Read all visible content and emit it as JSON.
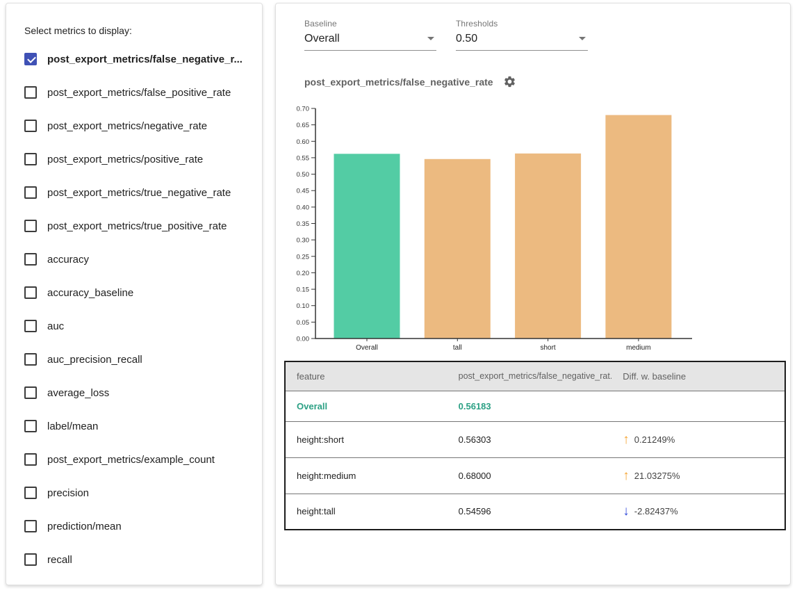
{
  "sidebar": {
    "title": "Select metrics to display:",
    "metrics": [
      {
        "label": "post_export_metrics/false_negative_r...",
        "checked": true
      },
      {
        "label": "post_export_metrics/false_positive_rate",
        "checked": false
      },
      {
        "label": "post_export_metrics/negative_rate",
        "checked": false
      },
      {
        "label": "post_export_metrics/positive_rate",
        "checked": false
      },
      {
        "label": "post_export_metrics/true_negative_rate",
        "checked": false
      },
      {
        "label": "post_export_metrics/true_positive_rate",
        "checked": false
      },
      {
        "label": "accuracy",
        "checked": false
      },
      {
        "label": "accuracy_baseline",
        "checked": false
      },
      {
        "label": "auc",
        "checked": false
      },
      {
        "label": "auc_precision_recall",
        "checked": false
      },
      {
        "label": "average_loss",
        "checked": false
      },
      {
        "label": "label/mean",
        "checked": false
      },
      {
        "label": "post_export_metrics/example_count",
        "checked": false
      },
      {
        "label": "precision",
        "checked": false
      },
      {
        "label": "prediction/mean",
        "checked": false
      },
      {
        "label": "recall",
        "checked": false
      }
    ]
  },
  "controls": {
    "baseline": {
      "label": "Baseline",
      "value": "Overall"
    },
    "thresholds": {
      "label": "Thresholds",
      "value": "0.50"
    }
  },
  "chart_header": {
    "title": "post_export_metrics/false_negative_rate"
  },
  "chart_data": {
    "type": "bar",
    "title": "post_export_metrics/false_negative_rate",
    "categories": [
      "Overall",
      "tall",
      "short",
      "medium"
    ],
    "values": [
      0.56183,
      0.54596,
      0.56303,
      0.68
    ],
    "bar_colors": [
      "#53CCA4",
      "#ECBA80",
      "#ECBA80",
      "#ECBA80"
    ],
    "xlabel": "",
    "ylabel": "",
    "ylim": [
      0,
      0.7
    ],
    "ytick_step": 0.05,
    "grid": false,
    "legend": "none"
  },
  "table": {
    "columns": [
      "feature",
      "post_export_metrics/false_negative_rat...",
      "Diff. w. baseline"
    ],
    "rows": [
      {
        "feature": "Overall",
        "value": "0.56183",
        "diff": "",
        "direction": "none",
        "is_baseline": true
      },
      {
        "feature": "height:short",
        "value": "0.56303",
        "diff": "0.21249%",
        "direction": "up",
        "is_baseline": false
      },
      {
        "feature": "height:medium",
        "value": "0.68000",
        "diff": "21.03275%",
        "direction": "up",
        "is_baseline": false
      },
      {
        "feature": "height:tall",
        "value": "0.54596",
        "diff": "-2.82437%",
        "direction": "down",
        "is_baseline": false
      }
    ]
  },
  "colors": {
    "checkbox_checked": "#3F51B5",
    "bar_baseline": "#53CCA4",
    "bar_slice": "#ECBA80",
    "baseline_row_text": "#2BA084",
    "arrow_up": "#F5A431",
    "arrow_down": "#3049D8"
  }
}
